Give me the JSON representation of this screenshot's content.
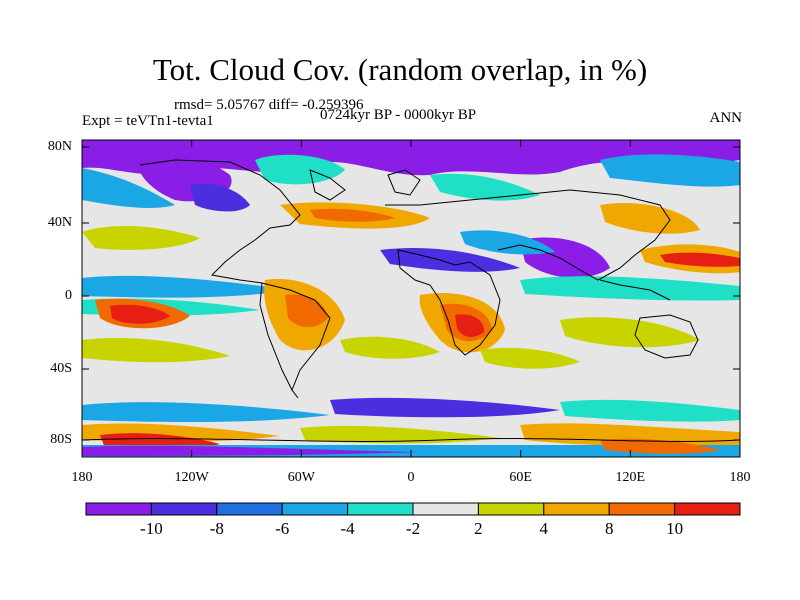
{
  "title": "Tot. Cloud Cov. (random overlap, in %)",
  "stats": "rmsd= 5.05767 diff= -0.259396",
  "experiment": "Expt = teVTn1-tevta1",
  "period": "0724kyr BP - 0000kyr BP",
  "season": "ANN",
  "lat_ticks": [
    "80N",
    "40N",
    "0",
    "40S",
    "80S"
  ],
  "lon_ticks": [
    "180",
    "120W",
    "60W",
    "0",
    "60E",
    "120E",
    "180"
  ],
  "colorbar": {
    "labels": [
      "-10",
      "-8",
      "-6",
      "-4",
      "-2",
      "2",
      "4",
      "8",
      "10"
    ],
    "colors": [
      "#8a1ee6",
      "#4a2ee0",
      "#1f6fe0",
      "#1ba6e6",
      "#1fe0c6",
      "#e6e6e6",
      "#c8d400",
      "#f0a800",
      "#f06a00",
      "#e61e14"
    ]
  }
}
